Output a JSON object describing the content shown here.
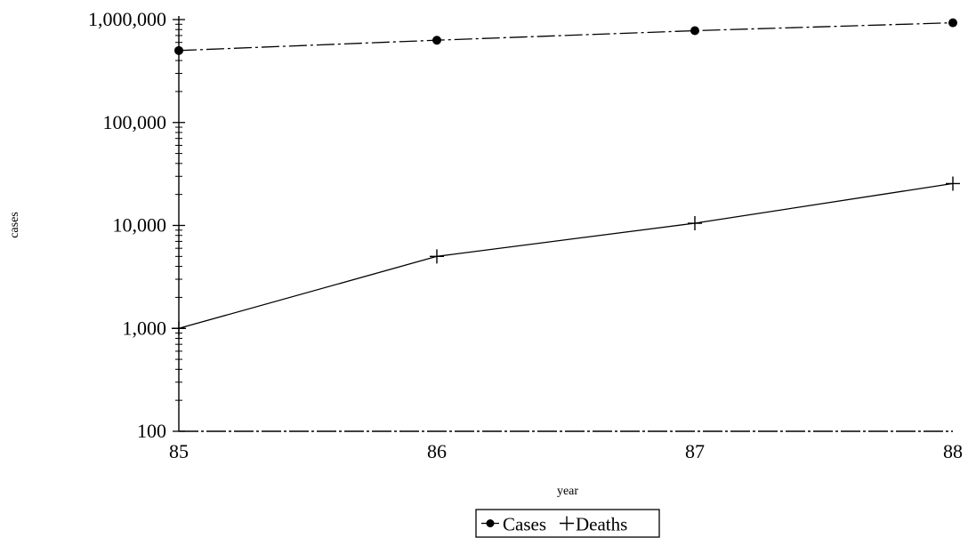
{
  "chart_data": {
    "type": "line",
    "title": "",
    "xlabel": "year",
    "ylabel": "cases",
    "x_scale": "linear",
    "y_scale": "log",
    "xlim": [
      85,
      88
    ],
    "ylim": [
      100,
      1000000
    ],
    "x": [
      85,
      86,
      87,
      88
    ],
    "x_tick_labels": [
      "85",
      "86",
      "87",
      "88"
    ],
    "y_ticks": [
      100,
      1000,
      10000,
      100000,
      1000000
    ],
    "y_tick_labels": [
      "100",
      "1,000",
      "10,000",
      "100,000",
      "1,000,000"
    ],
    "grid": false,
    "legend_position": "bottom-center",
    "series": [
      {
        "name": "Cases",
        "marker": "circle",
        "line_style": "dash-dot",
        "color": "#000000",
        "values": [
          500000,
          630000,
          780000,
          930000
        ]
      },
      {
        "name": "Deaths",
        "marker": "plus",
        "line_style": "solid",
        "color": "#000000",
        "values": [
          1000,
          5000,
          10500,
          25500
        ]
      }
    ]
  }
}
